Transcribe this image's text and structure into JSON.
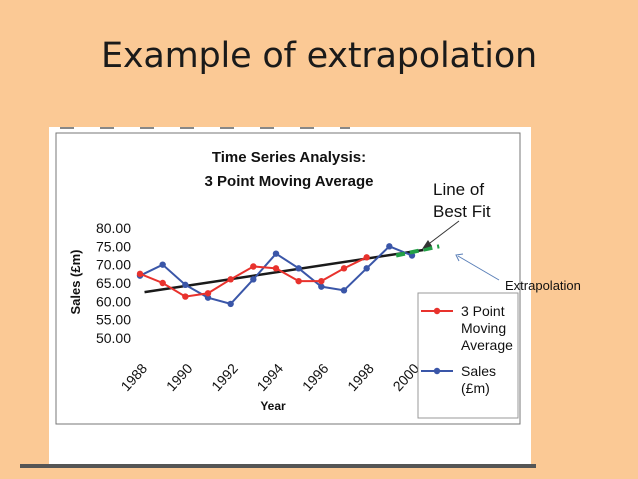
{
  "slide": {
    "title": "Example of extrapolation",
    "annotation": "Extrapolation"
  },
  "colors": {
    "background": "#fbc995",
    "moving_avg": "#e8322d",
    "sales": "#3a56a8",
    "trend": "#1a1a1a",
    "extrapolation": "#22a046"
  },
  "chart_data": {
    "type": "line",
    "title": "Time Series Analysis:",
    "subtitle": "3 Point Moving Average",
    "xlabel": "Year",
    "ylabel": "Sales (£m)",
    "ylim": [
      50,
      80
    ],
    "yticks": [
      "50.00",
      "55.00",
      "60.00",
      "65.00",
      "70.00",
      "75.00",
      "80.00"
    ],
    "xlim": [
      1988,
      2001.5
    ],
    "xticks": [
      "1988",
      "1990",
      "1992",
      "1994",
      "1996",
      "1998",
      "2000"
    ],
    "series": [
      {
        "name": "Sales (£m)",
        "legend_lines": [
          "Sales",
          "(£m)"
        ],
        "color": "#3a56a8",
        "x": [
          1988,
          1989,
          1990,
          1991,
          1992,
          1993,
          1994,
          1995,
          1996,
          1997,
          1998,
          1999,
          2000
        ],
        "values": [
          67,
          70,
          64.5,
          61,
          59.3,
          66,
          73,
          69,
          64,
          63,
          69,
          75,
          72.5
        ]
      },
      {
        "name": "3 Point Moving Average",
        "legend_lines": [
          "3 Point",
          "Moving",
          "Average"
        ],
        "color": "#e8322d",
        "x": [
          1988,
          1989,
          1990,
          1991,
          1992,
          1993,
          1994,
          1995,
          1996,
          1997,
          1998
        ],
        "values": [
          67.5,
          65,
          61.3,
          62.2,
          66,
          69.5,
          69,
          65.5,
          65.5,
          69,
          72
        ]
      }
    ],
    "trendline": {
      "label_lines": [
        "Line of",
        "Best Fit"
      ],
      "x": [
        1988.2,
        2000.5
      ],
      "values": [
        62.5,
        74
      ]
    },
    "extrapolation": {
      "label": "Extrapolation",
      "x": [
        1999.3,
        2001.2
      ],
      "values": [
        72.5,
        75
      ]
    }
  }
}
